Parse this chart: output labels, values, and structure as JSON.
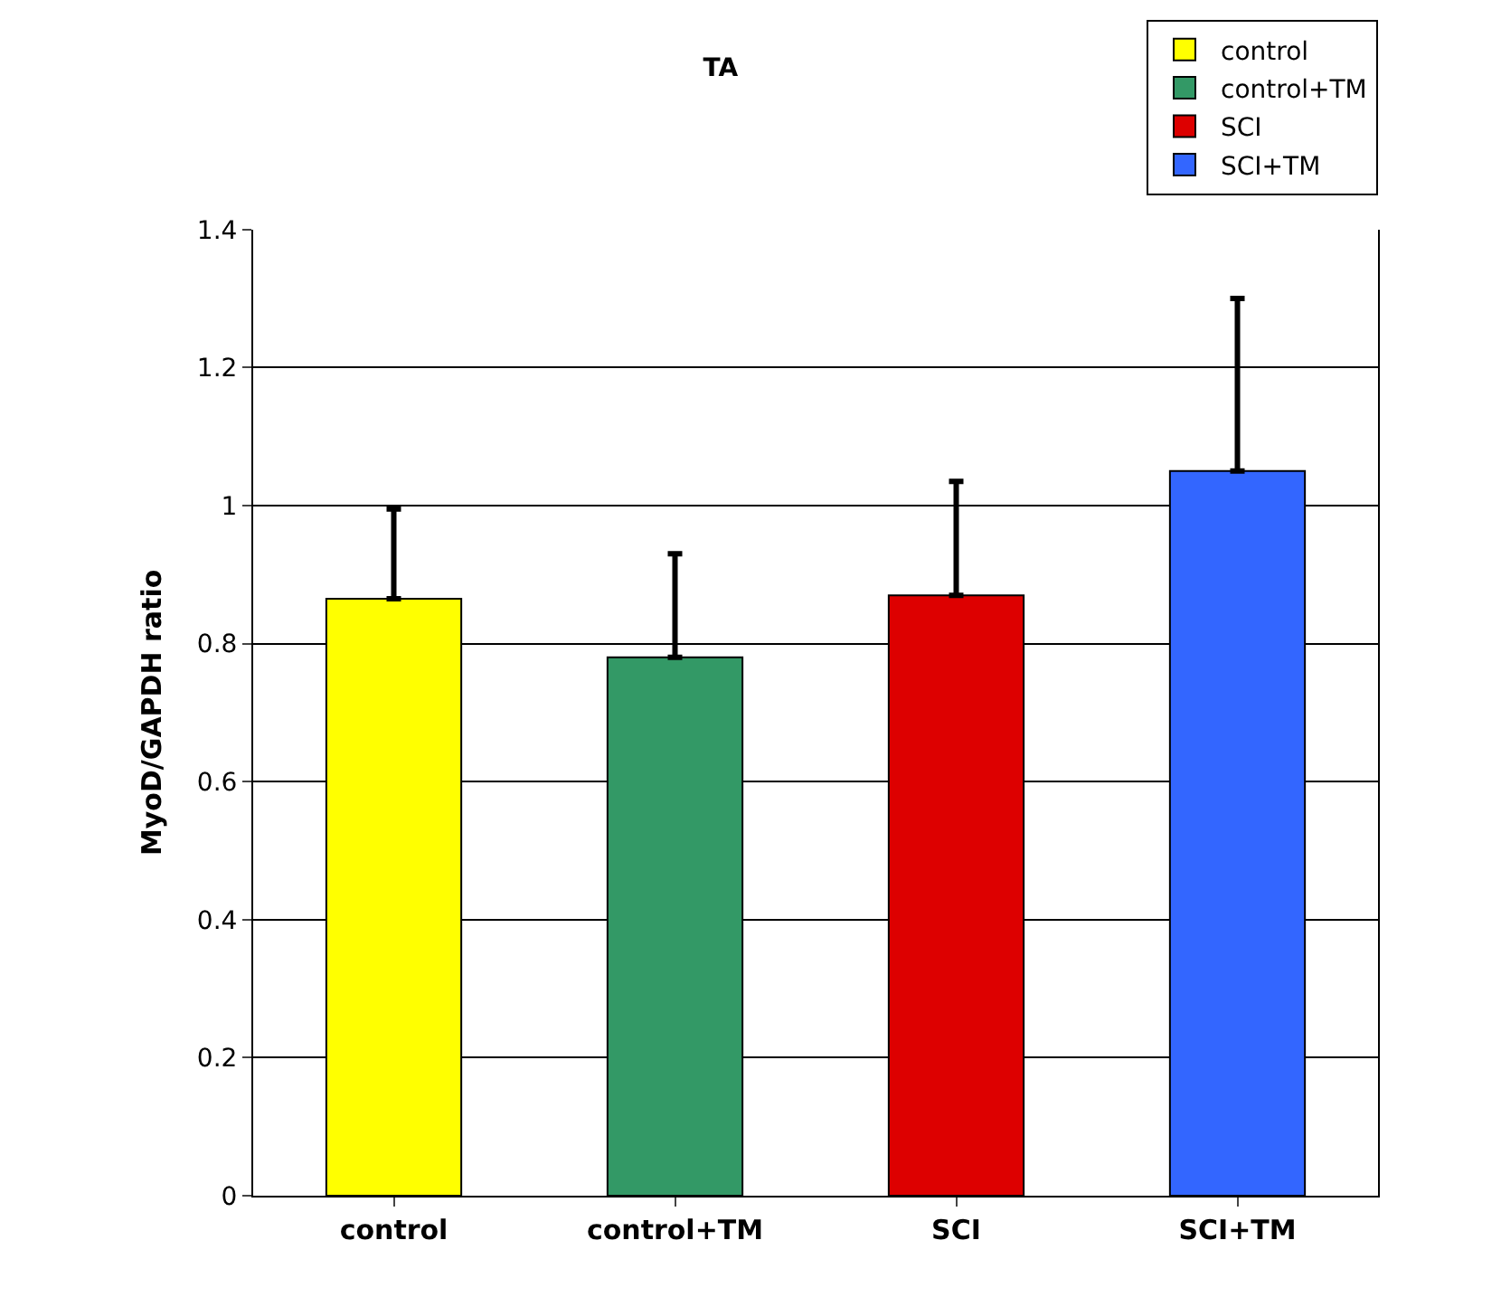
{
  "chart_data": {
    "type": "bar",
    "title": "TA",
    "ylabel": "MyoD/GAPDH ratio",
    "categories": [
      "control",
      "control+TM",
      "SCI",
      "SCI+TM"
    ],
    "series": [
      {
        "name": "control",
        "color": "#ffff00",
        "values": [
          0.865,
          null,
          null,
          null
        ],
        "errors": [
          [
            0.865,
            0.995
          ],
          null,
          null,
          null
        ]
      },
      {
        "name": "control+TM",
        "color": "#339966",
        "values": [
          null,
          0.78,
          null,
          null
        ],
        "errors": [
          null,
          [
            0.78,
            0.93
          ],
          null,
          null
        ]
      },
      {
        "name": "SCI",
        "color": "#dd0000",
        "values": [
          null,
          null,
          0.87,
          null
        ],
        "errors": [
          null,
          null,
          [
            0.87,
            1.035
          ],
          null
        ]
      },
      {
        "name": "SCI+TM",
        "color": "#3366ff",
        "values": [
          null,
          null,
          null,
          1.05
        ],
        "errors": [
          null,
          null,
          null,
          [
            1.05,
            1.3
          ]
        ]
      }
    ],
    "ylim": [
      0,
      1.4
    ],
    "yticks": [
      0,
      {
        "value": 0.2,
        "label": "0.2"
      },
      {
        "value": 0.4,
        "label": "0.4"
      },
      {
        "value": 0.6,
        "label": "0.6"
      },
      {
        "value": 0.8,
        "label": "0.8"
      },
      1,
      {
        "value": 1.2,
        "label": "1.2"
      },
      {
        "value": 1.4,
        "label": "1.4"
      }
    ],
    "grid": "y",
    "legend": "top right"
  }
}
